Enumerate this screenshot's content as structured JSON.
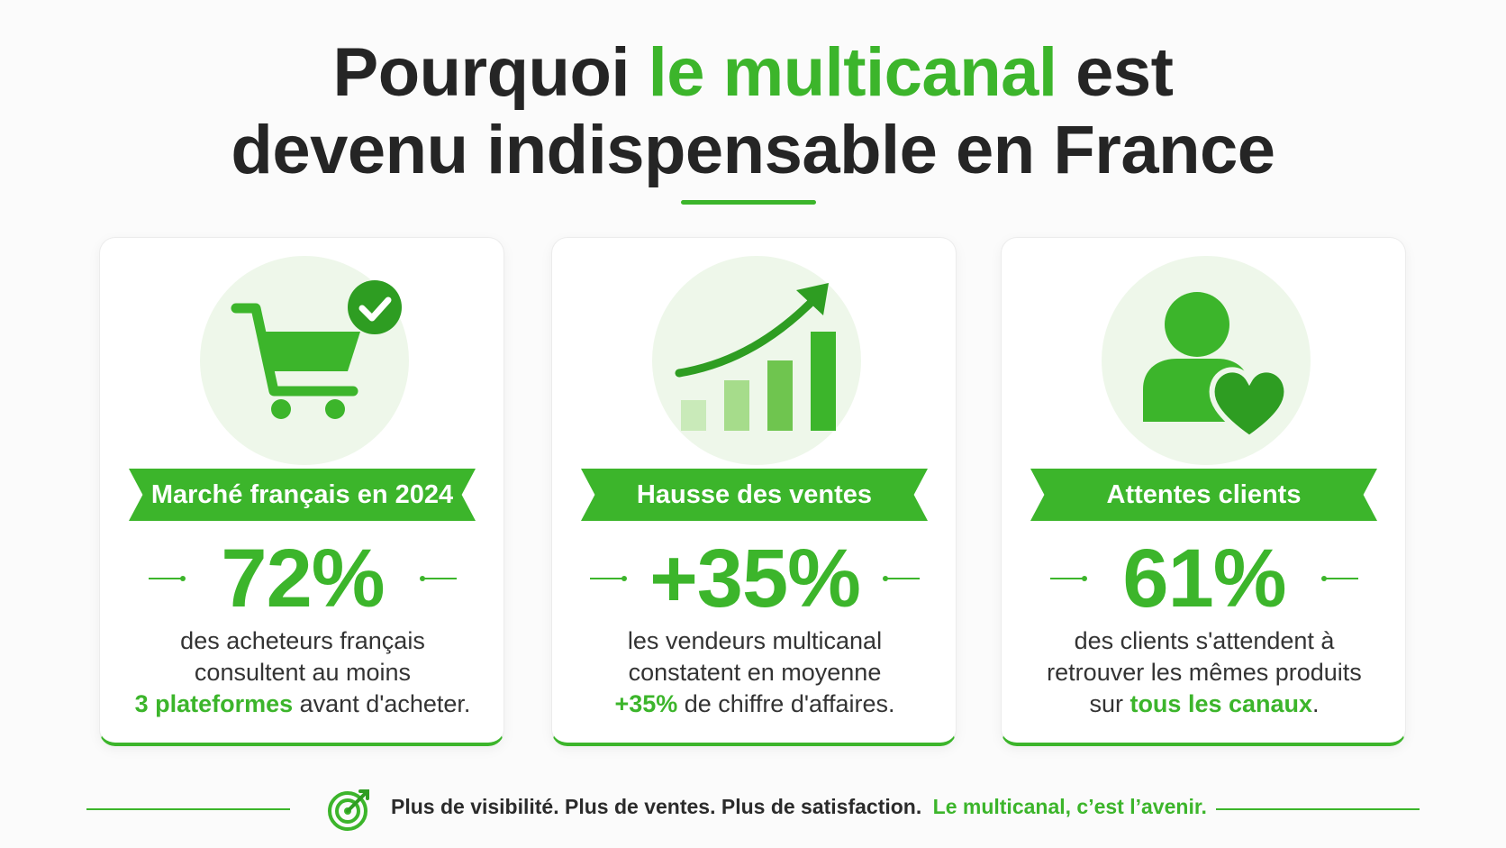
{
  "title": {
    "line1_pre": "Pourquoi ",
    "line1_highlight": "le multicanal",
    "line1_post": " est",
    "line2": "devenu indispensable en France"
  },
  "colors": {
    "accent": "#3cb52b",
    "text": "#252525",
    "icon_bg": "#eef7ea"
  },
  "cards": [
    {
      "icon": "shopping-cart-check-icon",
      "ribbon": "Marché français en 2024",
      "stat": "72%",
      "desc_line1": "des acheteurs français",
      "desc_line2": "consultent au moins",
      "desc_highlight": "3 plateformes",
      "desc_rest": " avant d'acheter."
    },
    {
      "icon": "growth-chart-icon",
      "ribbon": "Hausse des ventes",
      "stat": "+35%",
      "desc_line1": "les vendeurs multicanal",
      "desc_line2": "constatent en moyenne",
      "desc_highlight": "+35%",
      "desc_rest": " de chiffre d'affaires."
    },
    {
      "icon": "user-heart-icon",
      "ribbon": "Attentes clients",
      "stat": "61%",
      "desc_line1": "des clients s'attendent à",
      "desc_line2": "retrouver les mêmes produits",
      "desc_pre": "sur ",
      "desc_highlight": "tous les canaux",
      "desc_rest": "."
    }
  ],
  "footer": {
    "icon": "target-icon",
    "text": "Plus de visibilité. Plus de ventes. Plus de satisfaction.",
    "highlight": "Le multicanal, c’est l’avenir."
  }
}
